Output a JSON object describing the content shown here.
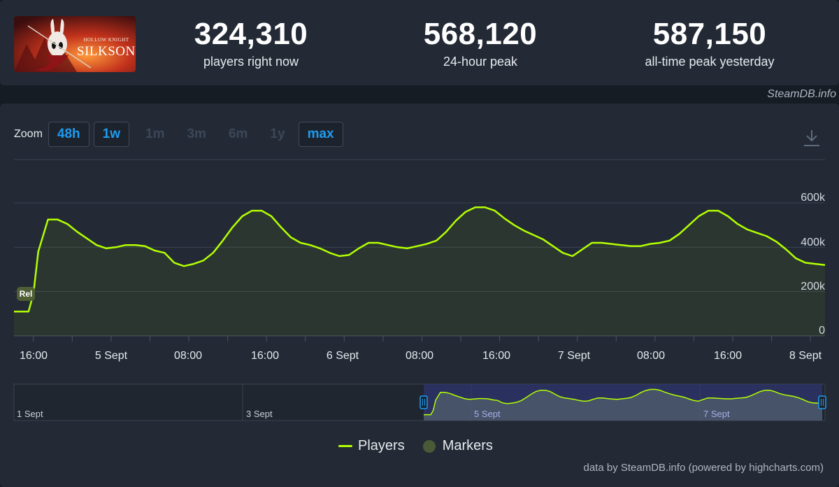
{
  "stats": [
    {
      "value": "324,310",
      "label": "players right now"
    },
    {
      "value": "568,120",
      "label": "24-hour peak"
    },
    {
      "value": "587,150",
      "label": "all-time peak yesterday"
    }
  ],
  "game_art": {
    "line1": "HOLLOW KNIGHT",
    "line2": "SILKSONG"
  },
  "credit_top": "SteamDB.info",
  "zoom": {
    "label": "Zoom",
    "buttons": [
      {
        "label": "48h",
        "active": true
      },
      {
        "label": "1w",
        "active": true
      },
      {
        "label": "1m",
        "active": false
      },
      {
        "label": "3m",
        "active": false
      },
      {
        "label": "6m",
        "active": false
      },
      {
        "label": "1y",
        "active": false
      },
      {
        "label": "max",
        "active": true
      }
    ]
  },
  "icons": {
    "download": "download-icon"
  },
  "colors": {
    "series": "#b3ff00",
    "marker": "#4f5e35",
    "zoom_active": "#1e9bf0",
    "navigator_selection": "#2f3673"
  },
  "legend": {
    "players": "Players",
    "markers": "Markers"
  },
  "credit_bottom": "data by SteamDB.info (powered by highcharts.com)",
  "marker": {
    "label": "Rel"
  },
  "navigator": {
    "labels": [
      "1 Sept",
      "3 Sept",
      "5 Sept",
      "7 Sept"
    ]
  },
  "chart_data": {
    "type": "line",
    "title": "",
    "xlabel": "",
    "ylabel": "",
    "x_unit": "hours since 4 Sept 12:00 (axis shows dates and times)",
    "ylim": [
      0,
      600000
    ],
    "yticks": [
      "0",
      "200k",
      "400k",
      "600k"
    ],
    "xticks": [
      "16:00",
      "5 Sept",
      "08:00",
      "16:00",
      "6 Sept",
      "08:00",
      "16:00",
      "7 Sept",
      "08:00",
      "16:00",
      "8 Sept"
    ],
    "grid": true,
    "legend_position": "bottom-center",
    "series": [
      {
        "name": "Players",
        "points": [
          [
            0,
            110000
          ],
          [
            3,
            110000
          ],
          [
            4,
            190000
          ],
          [
            5,
            380000
          ],
          [
            7,
            525000
          ],
          [
            9,
            525000
          ],
          [
            11,
            505000
          ],
          [
            13,
            470000
          ],
          [
            15,
            440000
          ],
          [
            17,
            410000
          ],
          [
            19,
            395000
          ],
          [
            21,
            400000
          ],
          [
            23,
            410000
          ],
          [
            25,
            410000
          ],
          [
            27,
            405000
          ],
          [
            29,
            385000
          ],
          [
            31,
            375000
          ],
          [
            33,
            330000
          ],
          [
            35,
            315000
          ],
          [
            37,
            325000
          ],
          [
            39,
            340000
          ],
          [
            41,
            375000
          ],
          [
            43,
            430000
          ],
          [
            45,
            490000
          ],
          [
            47,
            540000
          ],
          [
            49,
            565000
          ],
          [
            51,
            565000
          ],
          [
            53,
            540000
          ],
          [
            55,
            490000
          ],
          [
            57,
            445000
          ],
          [
            59,
            420000
          ],
          [
            61,
            410000
          ],
          [
            63,
            395000
          ],
          [
            65,
            375000
          ],
          [
            67,
            360000
          ],
          [
            69,
            365000
          ],
          [
            71,
            395000
          ],
          [
            73,
            420000
          ],
          [
            75,
            420000
          ],
          [
            77,
            410000
          ],
          [
            79,
            400000
          ],
          [
            81,
            395000
          ],
          [
            83,
            405000
          ],
          [
            85,
            415000
          ],
          [
            87,
            430000
          ],
          [
            89,
            470000
          ],
          [
            91,
            520000
          ],
          [
            93,
            560000
          ],
          [
            95,
            580000
          ],
          [
            97,
            580000
          ],
          [
            99,
            565000
          ],
          [
            101,
            530000
          ],
          [
            103,
            500000
          ],
          [
            105,
            475000
          ],
          [
            107,
            455000
          ],
          [
            109,
            435000
          ],
          [
            111,
            405000
          ],
          [
            113,
            375000
          ],
          [
            115,
            360000
          ],
          [
            117,
            390000
          ],
          [
            119,
            420000
          ],
          [
            121,
            420000
          ],
          [
            123,
            415000
          ],
          [
            125,
            410000
          ],
          [
            127,
            405000
          ],
          [
            129,
            405000
          ],
          [
            131,
            415000
          ],
          [
            133,
            420000
          ],
          [
            135,
            430000
          ],
          [
            137,
            460000
          ],
          [
            139,
            500000
          ],
          [
            141,
            540000
          ],
          [
            143,
            565000
          ],
          [
            145,
            565000
          ],
          [
            147,
            540000
          ],
          [
            149,
            505000
          ],
          [
            151,
            480000
          ],
          [
            153,
            465000
          ],
          [
            155,
            450000
          ],
          [
            157,
            425000
          ],
          [
            159,
            390000
          ],
          [
            161,
            350000
          ],
          [
            163,
            330000
          ],
          [
            165,
            325000
          ],
          [
            167,
            320000
          ]
        ]
      }
    ],
    "markers": [
      {
        "x": 3,
        "y": 200000,
        "label": "Rel"
      }
    ]
  }
}
